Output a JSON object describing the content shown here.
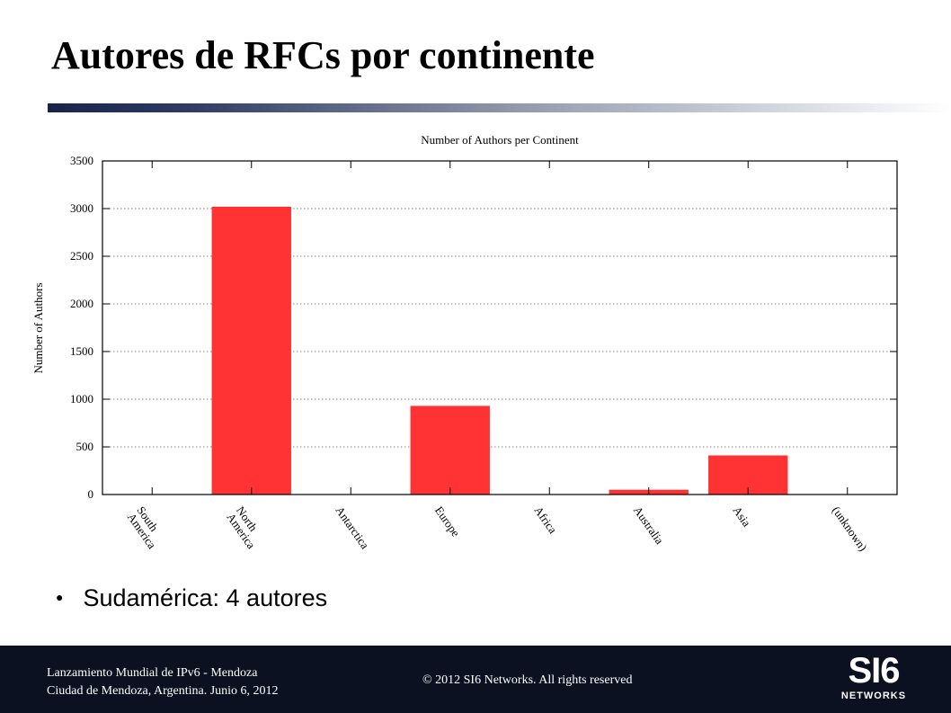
{
  "slide": {
    "title": "Autores de RFCs por continente",
    "bullet": "Sudamérica: 4 autores"
  },
  "footer": {
    "line1": "Lanzamiento Mundial de IPv6 - Mendoza",
    "line2": "Ciudad de Mendoza, Argentina. Junio 6, 2012",
    "copyright": "© 2012 SI6 Networks. All rights reserved",
    "logo_main": "SI6",
    "logo_sub": "NETWORKS"
  },
  "colors": {
    "bar": "#ff3333",
    "footer_bg": "#0c1122",
    "title_rule_start": "#17244a"
  },
  "chart_data": {
    "type": "bar",
    "title": "Number of Authors per Continent",
    "xlabel": "",
    "ylabel": "Number of Authors",
    "categories": [
      "South America",
      "North America",
      "Antarctica",
      "Europe",
      "Africa",
      "Australia",
      "Asia",
      "(unknown)"
    ],
    "category_lines": [
      [
        "South",
        "America"
      ],
      [
        "North",
        "America"
      ],
      [
        "Antarctica"
      ],
      [
        "Europe"
      ],
      [
        "Africa"
      ],
      [
        "Australia"
      ],
      [
        "Asia"
      ],
      [
        "(unknown)"
      ]
    ],
    "values": [
      4,
      3020,
      0,
      930,
      0,
      50,
      410,
      0
    ],
    "ylim": [
      0,
      3500
    ],
    "yticks": [
      0,
      500,
      1000,
      1500,
      2000,
      2500,
      3000,
      3500
    ],
    "grid": "horizontal dotted",
    "legend": "none"
  }
}
